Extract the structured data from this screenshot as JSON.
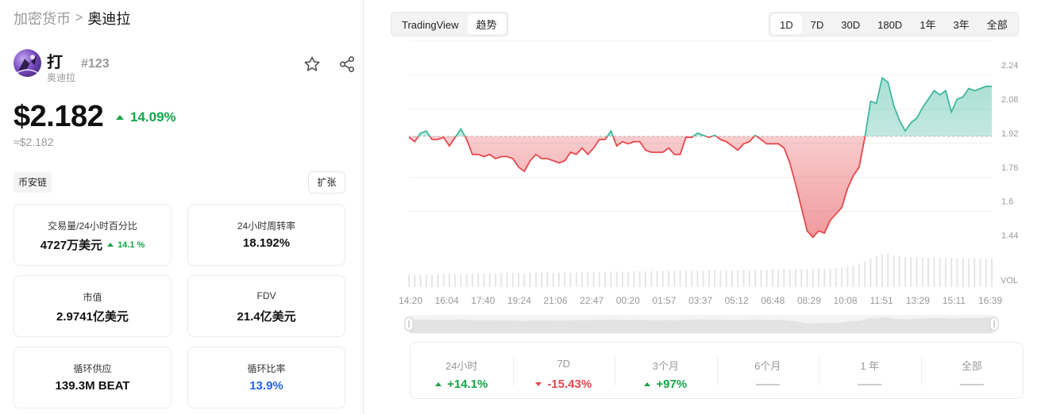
{
  "breadcrumb": {
    "root": "加密货币",
    "separator": ">",
    "current": "奥迪拉"
  },
  "coin": {
    "symbol": "打",
    "name": "奥迪拉",
    "rank": "#123",
    "price": "$2.182",
    "change_24h": "14.09%",
    "price_approx": "≈$2.182",
    "chain_tag": "币安链",
    "expand_label": "扩张"
  },
  "stats": [
    {
      "label": "交易量/24小时百分比",
      "value": "4727万美元",
      "sub": "14.1 %"
    },
    {
      "label": "24小时周转率",
      "value": "18.192%"
    },
    {
      "label": "市值",
      "value": "2.9741亿美元"
    },
    {
      "label": "FDV",
      "value": "21.4亿美元"
    },
    {
      "label": "循环供应",
      "value": "139.3M BEAT"
    },
    {
      "label": "循环比率",
      "value": "13.9%"
    }
  ],
  "chart_toolbar": {
    "sources": [
      "TradingView",
      "趋势"
    ],
    "ranges": [
      "1D",
      "7D",
      "30D",
      "180D",
      "1年",
      "3年",
      "全部"
    ],
    "active_range": "1D"
  },
  "performance": [
    {
      "label": "24小时",
      "value": "+14.1%",
      "dir": "up"
    },
    {
      "label": "7D",
      "value": "-15.43%",
      "dir": "down"
    },
    {
      "label": "3个月",
      "value": "+97%",
      "dir": "up"
    },
    {
      "label": "6个月",
      "value": "——",
      "dir": "none"
    },
    {
      "label": "1 年",
      "value": "——",
      "dir": "none"
    },
    {
      "label": "全部",
      "value": "——",
      "dir": "none"
    }
  ],
  "colors": {
    "up": "#16a34a",
    "down": "#e5484d",
    "line_up": "#3fb8a0",
    "line_down": "#e5484d",
    "blue": "#2563eb"
  },
  "chart_data": {
    "type": "area",
    "baseline": 1.905,
    "ylim": [
      1.36,
      2.3
    ],
    "y_ticks": [
      "2.24",
      "2.08",
      "1.92",
      "1.76",
      "1.6",
      "1.44"
    ],
    "volume_label": "VOL",
    "x_ticks": [
      "14:20",
      "16:04",
      "17:40",
      "19:24",
      "21:06",
      "22:47",
      "00:20",
      "01:57",
      "03:37",
      "05:12",
      "06:48",
      "08:29",
      "10:08",
      "11:51",
      "13:29",
      "15:11",
      "16:39"
    ],
    "values": [
      1.9,
      1.88,
      1.92,
      1.93,
      1.89,
      1.89,
      1.9,
      1.86,
      1.9,
      1.94,
      1.89,
      1.82,
      1.82,
      1.81,
      1.82,
      1.8,
      1.81,
      1.81,
      1.8,
      1.76,
      1.74,
      1.79,
      1.82,
      1.8,
      1.8,
      1.79,
      1.78,
      1.79,
      1.83,
      1.82,
      1.85,
      1.82,
      1.85,
      1.89,
      1.89,
      1.93,
      1.86,
      1.88,
      1.87,
      1.88,
      1.88,
      1.84,
      1.83,
      1.83,
      1.83,
      1.85,
      1.82,
      1.82,
      1.9,
      1.9,
      1.92,
      1.91,
      1.9,
      1.91,
      1.89,
      1.88,
      1.86,
      1.84,
      1.87,
      1.88,
      1.91,
      1.89,
      1.87,
      1.87,
      1.87,
      1.85,
      1.78,
      1.68,
      1.57,
      1.46,
      1.43,
      1.46,
      1.45,
      1.51,
      1.54,
      1.57,
      1.66,
      1.72,
      1.76,
      1.9,
      2.07,
      2.06,
      2.18,
      2.16,
      2.05,
      1.98,
      1.93,
      1.97,
      1.99,
      2.04,
      2.08,
      2.12,
      2.1,
      2.12,
      2.02,
      2.08,
      2.09,
      2.13,
      2.12,
      2.13,
      2.14,
      2.14
    ],
    "volume": [
      0.3,
      0.32,
      0.31,
      0.33,
      0.32,
      0.33,
      0.34,
      0.33,
      0.34,
      0.33,
      0.34,
      0.35,
      0.36,
      0.35,
      0.36,
      0.35,
      0.36,
      0.37,
      0.36,
      0.37,
      0.36,
      0.37,
      0.38,
      0.37,
      0.38,
      0.37,
      0.38,
      0.38,
      0.37,
      0.38,
      0.39,
      0.38,
      0.39,
      0.38,
      0.39,
      0.4,
      0.39,
      0.4,
      0.39,
      0.4,
      0.41,
      0.4,
      0.41,
      0.42,
      0.41,
      0.42,
      0.41,
      0.42,
      0.43,
      0.42,
      0.43,
      0.42,
      0.43,
      0.44,
      0.43,
      0.44,
      0.43,
      0.44,
      0.45,
      0.44,
      0.45,
      0.44,
      0.45,
      0.46,
      0.45,
      0.46,
      0.45,
      0.46,
      0.47,
      0.46,
      0.47,
      0.48,
      0.47,
      0.48,
      0.49,
      0.5,
      0.52,
      0.55,
      0.6,
      0.66,
      0.74,
      0.8,
      0.84,
      0.86,
      0.82,
      0.8,
      0.78,
      0.77,
      0.78,
      0.77,
      0.76,
      0.77,
      0.76,
      0.75,
      0.76,
      0.75,
      0.75,
      0.74,
      0.75,
      0.74,
      0.74,
      0.74
    ]
  }
}
